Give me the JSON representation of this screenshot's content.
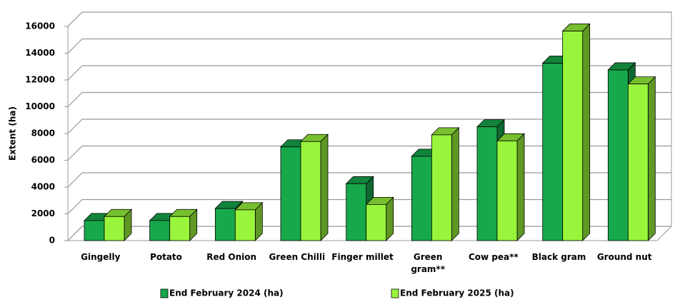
{
  "chart_data": {
    "type": "bar",
    "y_label": "Extent (ha)",
    "categories": [
      "Gingelly",
      "Potato",
      "Red Onion",
      "Green Chilli",
      "Finger millet",
      "Green gram**",
      "Cow pea**",
      "Black gram",
      "Ground nut"
    ],
    "series": [
      {
        "name": "End February 2024  (ha)",
        "color": "#17a84b",
        "values": [
          1500,
          1500,
          2400,
          7000,
          4250,
          6300,
          8500,
          13250,
          12750
        ]
      },
      {
        "name": "End February 2025 (ha)",
        "color": "#99f53c",
        "values": [
          1800,
          1800,
          2300,
          7400,
          2700,
          7900,
          7450,
          15650,
          11700
        ]
      }
    ],
    "ylim": [
      0,
      16000
    ],
    "yticks": [
      0,
      2000,
      4000,
      6000,
      8000,
      10000,
      12000,
      14000,
      16000
    ],
    "grid": true,
    "legend": "bottom"
  }
}
